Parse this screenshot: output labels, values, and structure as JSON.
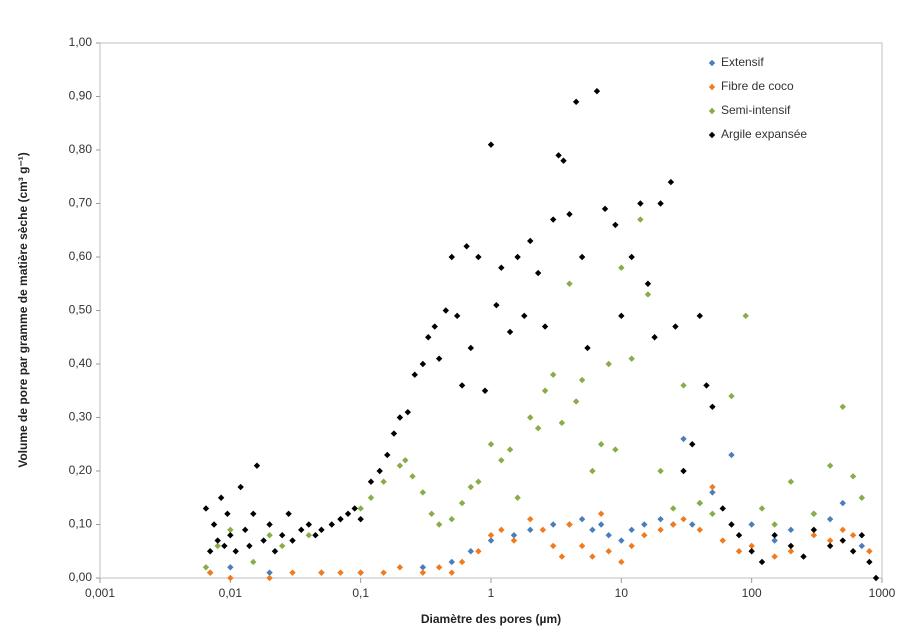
{
  "chart_data": {
    "type": "scatter",
    "xlabel": "Diamètre des pores (µm)",
    "ylabel": "Volume de pore par gramme de matière sèche (cm³ g⁻¹)",
    "xscale": "log",
    "xlim": [
      0.001,
      1000
    ],
    "xticks": [
      {
        "value": 0.001,
        "label": "0,001"
      },
      {
        "value": 0.01,
        "label": "0,01"
      },
      {
        "value": 0.1,
        "label": "0,1"
      },
      1,
      10,
      100,
      1000
    ],
    "ylim": [
      0,
      1
    ],
    "yticks": [
      {
        "value": 0,
        "label": "0,00"
      },
      {
        "value": 0.1,
        "label": "0,10"
      },
      {
        "value": 0.2,
        "label": "0,20"
      },
      {
        "value": 0.3,
        "label": "0,30"
      },
      {
        "value": 0.4,
        "label": "0,40"
      },
      {
        "value": 0.5,
        "label": "0,50"
      },
      {
        "value": 0.6,
        "label": "0,60"
      },
      {
        "value": 0.7,
        "label": "0,70"
      },
      {
        "value": 0.8,
        "label": "0,80"
      },
      {
        "value": 0.9,
        "label": "0,90"
      },
      {
        "value": 1,
        "label": "1,00"
      }
    ],
    "grid": false,
    "legend": "upper right",
    "series": [
      {
        "name": "Extensif",
        "color": "#4a7ebb",
        "x": [
          0.007,
          0.01,
          0.02,
          0.05,
          0.1,
          0.3,
          0.5,
          0.7,
          1,
          1.5,
          2,
          3,
          4,
          5,
          6,
          7,
          8,
          10,
          12,
          15,
          20,
          25,
          30,
          35,
          40,
          50,
          70,
          100,
          150,
          200,
          300,
          400,
          500,
          700
        ],
        "values": [
          0.01,
          0.02,
          0.01,
          0.01,
          0.01,
          0.02,
          0.03,
          0.05,
          0.07,
          0.08,
          0.09,
          0.1,
          0.1,
          0.11,
          0.09,
          0.1,
          0.08,
          0.07,
          0.09,
          0.1,
          0.11,
          0.1,
          0.26,
          0.1,
          0.14,
          0.16,
          0.23,
          0.1,
          0.07,
          0.09,
          0.12,
          0.11,
          0.14,
          0.06
        ]
      },
      {
        "name": "Fibre de coco",
        "color": "#f07b1e",
        "x": [
          0.007,
          0.01,
          0.02,
          0.03,
          0.05,
          0.07,
          0.1,
          0.15,
          0.2,
          0.3,
          0.4,
          0.5,
          0.6,
          0.8,
          1,
          1.2,
          1.5,
          2,
          2.5,
          3,
          3.5,
          4,
          5,
          6,
          7,
          8,
          10,
          12,
          15,
          20,
          25,
          30,
          40,
          50,
          60,
          80,
          100,
          150,
          200,
          300,
          400,
          500,
          600,
          800
        ],
        "values": [
          0.01,
          0,
          0,
          0.01,
          0.01,
          0.01,
          0.01,
          0.01,
          0.02,
          0.01,
          0.02,
          0.01,
          0.03,
          0.05,
          0.08,
          0.09,
          0.07,
          0.11,
          0.09,
          0.06,
          0.04,
          0.1,
          0.06,
          0.04,
          0.12,
          0.05,
          0.03,
          0.06,
          0.08,
          0.09,
          0.1,
          0.11,
          0.09,
          0.17,
          0.07,
          0.05,
          0.06,
          0.04,
          0.05,
          0.08,
          0.07,
          0.09,
          0.08,
          0.05
        ]
      },
      {
        "name": "Semi-intensif",
        "color": "#8aac48",
        "x": [
          0.0065,
          0.008,
          0.01,
          0.015,
          0.02,
          0.025,
          0.03,
          0.04,
          0.05,
          0.07,
          0.1,
          0.12,
          0.15,
          0.2,
          0.22,
          0.25,
          0.3,
          0.35,
          0.4,
          0.5,
          0.6,
          0.7,
          0.8,
          1,
          1.2,
          1.4,
          1.6,
          2,
          2.3,
          2.6,
          3,
          3.5,
          4,
          4.5,
          5,
          6,
          7,
          8,
          9,
          10,
          12,
          14,
          16,
          20,
          25,
          30,
          40,
          50,
          70,
          90,
          120,
          150,
          200,
          300,
          400,
          500,
          600,
          700
        ],
        "values": [
          0.02,
          0.06,
          0.09,
          0.03,
          0.08,
          0.06,
          0.07,
          0.08,
          0.09,
          0.11,
          0.13,
          0.15,
          0.18,
          0.21,
          0.22,
          0.19,
          0.16,
          0.12,
          0.1,
          0.11,
          0.14,
          0.17,
          0.18,
          0.25,
          0.22,
          0.24,
          0.15,
          0.3,
          0.28,
          0.35,
          0.38,
          0.29,
          0.55,
          0.33,
          0.37,
          0.2,
          0.25,
          0.4,
          0.24,
          0.58,
          0.41,
          0.67,
          0.53,
          0.2,
          0.13,
          0.36,
          0.14,
          0.12,
          0.34,
          0.49,
          0.13,
          0.1,
          0.18,
          0.12,
          0.21,
          0.32,
          0.19,
          0.15
        ]
      },
      {
        "name": "Argile expansée",
        "color": "#000000",
        "x": [
          0.0065,
          0.007,
          0.0075,
          0.008,
          0.0085,
          0.009,
          0.0095,
          0.01,
          0.011,
          0.012,
          0.013,
          0.014,
          0.015,
          0.016,
          0.018,
          0.02,
          0.022,
          0.025,
          0.028,
          0.03,
          0.035,
          0.04,
          0.045,
          0.05,
          0.06,
          0.07,
          0.08,
          0.09,
          0.1,
          0.12,
          0.14,
          0.16,
          0.18,
          0.2,
          0.23,
          0.26,
          0.3,
          0.33,
          0.37,
          0.4,
          0.45,
          0.5,
          0.55,
          0.6,
          0.65,
          0.7,
          0.8,
          0.9,
          1,
          1.1,
          1.2,
          1.4,
          1.6,
          1.8,
          2,
          2.3,
          2.6,
          3,
          3.3,
          3.6,
          4,
          4.5,
          5,
          5.5,
          6.5,
          7.5,
          9,
          10,
          12,
          14,
          16,
          18,
          20,
          24,
          26,
          30,
          35,
          40,
          45,
          50,
          60,
          70,
          80,
          100,
          120,
          150,
          200,
          250,
          300,
          400,
          500,
          600,
          700,
          800,
          900
        ],
        "values": [
          0.13,
          0.05,
          0.1,
          0.07,
          0.15,
          0.06,
          0.12,
          0.08,
          0.05,
          0.17,
          0.09,
          0.06,
          0.12,
          0.21,
          0.07,
          0.1,
          0.05,
          0.08,
          0.12,
          0.07,
          0.09,
          0.1,
          0.08,
          0.09,
          0.1,
          0.11,
          0.12,
          0.13,
          0.11,
          0.18,
          0.2,
          0.23,
          0.27,
          0.3,
          0.31,
          0.38,
          0.4,
          0.45,
          0.47,
          0.41,
          0.5,
          0.6,
          0.49,
          0.36,
          0.62,
          0.43,
          0.6,
          0.35,
          0.81,
          0.51,
          0.58,
          0.46,
          0.6,
          0.49,
          0.63,
          0.57,
          0.47,
          0.67,
          0.79,
          0.78,
          0.68,
          0.89,
          0.6,
          0.43,
          0.91,
          0.69,
          0.66,
          0.49,
          0.6,
          0.7,
          0.55,
          0.45,
          0.7,
          0.74,
          0.47,
          0.2,
          0.25,
          0.49,
          0.36,
          0.32,
          0.13,
          0.1,
          0.08,
          0.05,
          0.03,
          0.08,
          0.06,
          0.04,
          0.09,
          0.06,
          0.07,
          0.05,
          0.08,
          0.03,
          0
        ]
      }
    ]
  }
}
